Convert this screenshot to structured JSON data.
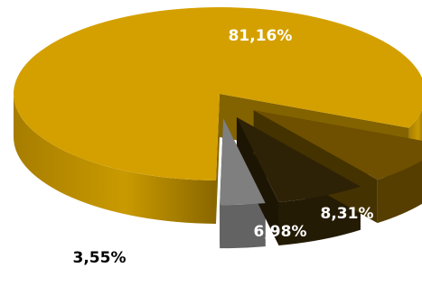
{
  "chart_data": {
    "type": "pie",
    "title": "",
    "slices": [
      {
        "label": "81,16%",
        "value": 81.16,
        "color": "#D4A000"
      },
      {
        "label": "8,31%",
        "value": 8.31,
        "color": "#6E5000"
      },
      {
        "label": "6,98%",
        "value": 6.98,
        "color": "#2E2206"
      },
      {
        "label": "3,55%",
        "value": 3.55,
        "color": "#7F7F7F"
      }
    ]
  },
  "colors": {
    "label_on_dark": "#ffffff",
    "label_on_light": "#000000",
    "background": "#ffffff"
  }
}
